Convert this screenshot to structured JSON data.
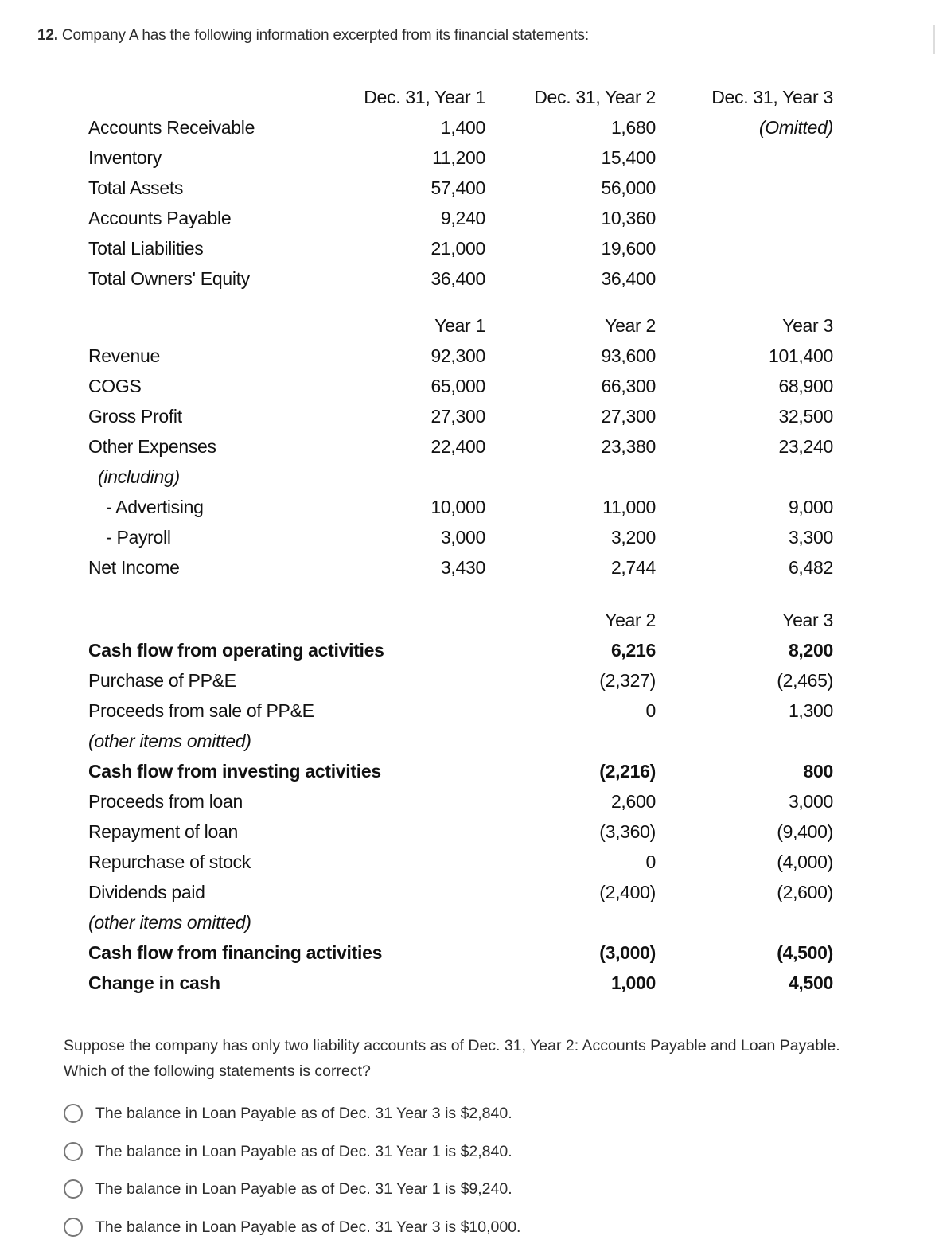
{
  "question": {
    "number": "12.",
    "intro": "Company A has the following information excerpted from its financial statements:",
    "prompt_line1": "Suppose the company has only two liability accounts as of Dec. 31, Year 2: Accounts Payable and Loan Payable.",
    "prompt_line2": "Which of the following statements is correct?",
    "options": [
      "The balance in Loan Payable as of Dec. 31 Year 3 is $2,840.",
      "The balance in Loan Payable as of Dec. 31 Year 1 is $2,840.",
      "The balance in Loan Payable as of Dec. 31 Year 1 is $9,240.",
      "The balance in Loan Payable as of Dec. 31 Year 3 is $10,000."
    ]
  },
  "balance_sheet": {
    "headers": [
      "Dec. 31, Year 1",
      "Dec. 31, Year 2",
      "Dec. 31, Year 3"
    ],
    "rows": [
      {
        "label": "Accounts Receivable",
        "values": [
          "1,400",
          "1,680",
          "(Omitted)"
        ]
      },
      {
        "label": "Inventory",
        "values": [
          "11,200",
          "15,400",
          ""
        ]
      },
      {
        "label": "Total Assets",
        "values": [
          "57,400",
          "56,000",
          ""
        ]
      },
      {
        "label": "Accounts Payable",
        "values": [
          "9,240",
          "10,360",
          ""
        ]
      },
      {
        "label": "Total Liabilities",
        "values": [
          "21,000",
          "19,600",
          ""
        ]
      },
      {
        "label": "Total Owners' Equity",
        "values": [
          "36,400",
          "36,400",
          ""
        ]
      }
    ]
  },
  "income_statement": {
    "headers": [
      "Year 1",
      "Year 2",
      "Year 3"
    ],
    "rows": [
      {
        "label": "Revenue",
        "values": [
          "92,300",
          "93,600",
          "101,400"
        ]
      },
      {
        "label": "COGS",
        "values": [
          "65,000",
          "66,300",
          "68,900"
        ]
      },
      {
        "label": "Gross Profit",
        "values": [
          "27,300",
          "27,300",
          "32,500"
        ]
      },
      {
        "label": "Other Expenses",
        "values": [
          "22,400",
          "23,380",
          "23,240"
        ]
      },
      {
        "label": "(including)",
        "values": [
          "",
          "",
          ""
        ]
      },
      {
        "label": "- Advertising",
        "values": [
          "10,000",
          "11,000",
          "9,000"
        ]
      },
      {
        "label": "- Payroll",
        "values": [
          "3,000",
          "3,200",
          "3,300"
        ]
      },
      {
        "label": "Net Income",
        "values": [
          "3,430",
          "2,744",
          "6,482"
        ]
      }
    ]
  },
  "cash_flow": {
    "headers": [
      "",
      "Year 2",
      "Year 3"
    ],
    "rows": [
      {
        "label": "Cash flow from operating activities",
        "values": [
          "",
          "6,216",
          "8,200"
        ]
      },
      {
        "label": "Purchase of PP&E",
        "values": [
          "",
          "(2,327)",
          "(2,465)"
        ]
      },
      {
        "label": "Proceeds from sale of PP&E",
        "values": [
          "",
          "0",
          "1,300"
        ]
      },
      {
        "label": "(other items omitted)",
        "values": [
          "",
          "",
          ""
        ]
      },
      {
        "label": "Cash flow from investing activities",
        "values": [
          "",
          "(2,216)",
          "800"
        ]
      },
      {
        "label": "Proceeds from loan",
        "values": [
          "",
          "2,600",
          "3,000"
        ]
      },
      {
        "label": "Repayment of loan",
        "values": [
          "",
          "(3,360)",
          "(9,400)"
        ]
      },
      {
        "label": "Repurchase of stock",
        "values": [
          "",
          "0",
          "(4,000)"
        ]
      },
      {
        "label": "Dividends paid",
        "values": [
          "",
          "(2,400)",
          "(2,600)"
        ]
      },
      {
        "label": "(other items omitted)",
        "values": [
          "",
          "",
          ""
        ]
      },
      {
        "label": "Cash flow from financing activities",
        "values": [
          "",
          "(3,000)",
          "(4,500)"
        ]
      },
      {
        "label": "Change in cash",
        "values": [
          "",
          "1,000",
          "4,500"
        ]
      }
    ]
  }
}
